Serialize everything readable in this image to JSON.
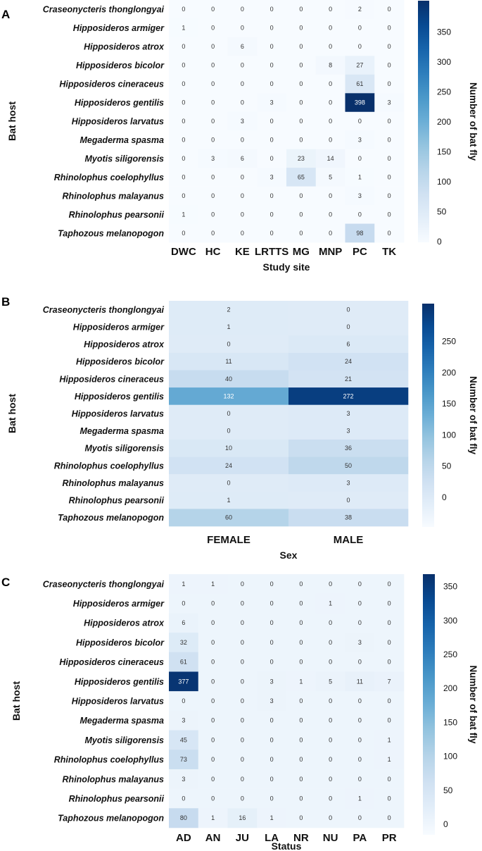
{
  "chart_data": [
    {
      "panel": "A",
      "type": "heatmap",
      "title": "",
      "xlabel": "Study site",
      "ylabel": "Bat host",
      "colorbar_label": "Number of bat fly",
      "colorbar_ticks": [
        0,
        50,
        100,
        150,
        200,
        250,
        300,
        350
      ],
      "colorbar_range": [
        0,
        398
      ],
      "x": [
        "DWC",
        "HC",
        "KE",
        "LRTTS",
        "MG",
        "MNP",
        "PC",
        "TK"
      ],
      "y": [
        "Craseonycteris thonglongyai",
        "Hipposideros armiger",
        "Hipposideros atrox",
        "Hipposideros bicolor",
        "Hipposideros cineraceus",
        "Hipposideros gentilis",
        "Hipposideros larvatus",
        "Megaderma spasma",
        "Myotis siligorensis",
        "Rhinolophus coelophyllus",
        "Rhinolophus malayanus",
        "Rhinolophus pearsonii",
        "Taphozous melanopogon"
      ],
      "values": [
        [
          0,
          0,
          0,
          0,
          0,
          0,
          2,
          0
        ],
        [
          1,
          0,
          0,
          0,
          0,
          0,
          0,
          0
        ],
        [
          0,
          0,
          6,
          0,
          0,
          0,
          0,
          0
        ],
        [
          0,
          0,
          0,
          0,
          0,
          8,
          27,
          0
        ],
        [
          0,
          0,
          0,
          0,
          0,
          0,
          61,
          0
        ],
        [
          0,
          0,
          0,
          3,
          0,
          0,
          398,
          3
        ],
        [
          0,
          0,
          3,
          0,
          0,
          0,
          0,
          0
        ],
        [
          0,
          0,
          0,
          0,
          0,
          0,
          3,
          0
        ],
        [
          0,
          3,
          6,
          0,
          23,
          14,
          0,
          0
        ],
        [
          0,
          0,
          0,
          3,
          65,
          5,
          1,
          0
        ],
        [
          0,
          0,
          0,
          0,
          0,
          0,
          3,
          0
        ],
        [
          1,
          0,
          0,
          0,
          0,
          0,
          0,
          0
        ],
        [
          0,
          0,
          0,
          0,
          0,
          0,
          98,
          0
        ]
      ]
    },
    {
      "panel": "B",
      "type": "heatmap",
      "title": "",
      "xlabel": "Sex",
      "ylabel": "Bat host",
      "colorbar_label": "Number of bat fly",
      "colorbar_ticks": [
        0,
        50,
        100,
        150,
        200,
        250
      ],
      "colorbar_range": [
        -40,
        290
      ],
      "x": [
        "FEMALE",
        "MALE"
      ],
      "y": [
        "Craseonycteris thonglongyai",
        "Hipposideros armiger",
        "Hipposideros atrox",
        "Hipposideros bicolor",
        "Hipposideros cineraceus",
        "Hipposideros gentilis",
        "Hipposideros larvatus",
        "Megaderma spasma",
        "Myotis siligorensis",
        "Rhinolophus coelophyllus",
        "Rhinolophus malayanus",
        "Rhinolophus pearsonii",
        "Taphozous melanopogon"
      ],
      "values": [
        [
          2,
          0
        ],
        [
          1,
          0
        ],
        [
          0,
          6
        ],
        [
          11,
          24
        ],
        [
          40,
          21
        ],
        [
          132,
          272
        ],
        [
          0,
          3
        ],
        [
          0,
          3
        ],
        [
          10,
          36
        ],
        [
          24,
          50
        ],
        [
          0,
          3
        ],
        [
          1,
          0
        ],
        [
          60,
          38
        ]
      ]
    },
    {
      "panel": "C",
      "type": "heatmap",
      "title": "",
      "xlabel": "Status",
      "ylabel": "Bat host",
      "colorbar_label": "Number of bat fly",
      "colorbar_ticks": [
        0,
        50,
        100,
        150,
        200,
        250,
        300,
        350
      ],
      "colorbar_range": [
        -20,
        385
      ],
      "x": [
        "AD",
        "AN",
        "JU",
        "LA",
        "NR",
        "NU",
        "PA",
        "PR"
      ],
      "y": [
        "Craseonycteris thonglongyai",
        "Hipposideros armiger",
        "Hipposideros atrox",
        "Hipposideros bicolor",
        "Hipposideros cineraceus",
        "Hipposideros gentilis",
        "Hipposideros larvatus",
        "Megaderma spasma",
        "Myotis siligorensis",
        "Rhinolophus coelophyllus",
        "Rhinolophus malayanus",
        "Rhinolophus pearsonii",
        "Taphozous melanopogon"
      ],
      "values": [
        [
          1,
          1,
          0,
          0,
          0,
          0,
          0,
          0
        ],
        [
          0,
          0,
          0,
          0,
          0,
          1,
          0,
          0
        ],
        [
          6,
          0,
          0,
          0,
          0,
          0,
          0,
          0
        ],
        [
          32,
          0,
          0,
          0,
          0,
          0,
          3,
          0
        ],
        [
          61,
          0,
          0,
          0,
          0,
          0,
          0,
          0
        ],
        [
          377,
          0,
          0,
          3,
          1,
          5,
          11,
          7
        ],
        [
          0,
          0,
          0,
          3,
          0,
          0,
          0,
          0
        ],
        [
          3,
          0,
          0,
          0,
          0,
          0,
          0,
          0
        ],
        [
          45,
          0,
          0,
          0,
          0,
          0,
          0,
          1
        ],
        [
          73,
          0,
          0,
          0,
          0,
          0,
          0,
          1
        ],
        [
          3,
          0,
          0,
          0,
          0,
          0,
          0,
          0
        ],
        [
          0,
          0,
          0,
          0,
          0,
          0,
          1,
          0
        ],
        [
          80,
          1,
          16,
          1,
          0,
          0,
          0,
          0
        ]
      ]
    }
  ],
  "colors": {
    "low": "#f7fbff",
    "mid": "#6baed6",
    "high": "#08306b"
  }
}
